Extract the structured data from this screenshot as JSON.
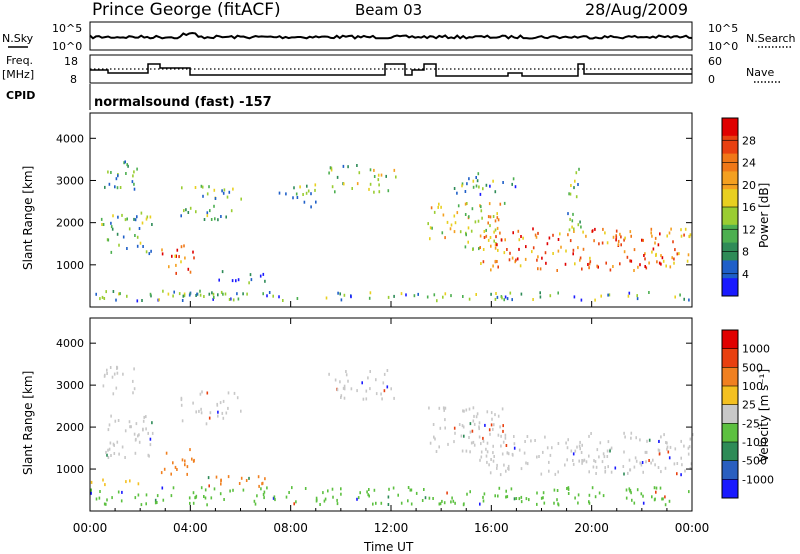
{
  "header": {
    "station": "Prince George (fitACF)",
    "beam": "Beam 03",
    "date": "28/Aug/2009"
  },
  "panels": {
    "nsky": {
      "label": "N.Sky",
      "ticks": [
        "10^5",
        "10^0"
      ]
    },
    "nsearch": {
      "label": "N.Search",
      "ticks": [
        "10^5",
        "10^0"
      ]
    },
    "freq": {
      "label_line1": "Freq.",
      "label_line2": "[MHz]",
      "ticks": [
        "18",
        "8"
      ]
    },
    "nave": {
      "label": "Nave",
      "ticks": [
        "60",
        "0"
      ]
    },
    "cpid": {
      "label": "CPID",
      "text": "normalsound (fast) -157"
    }
  },
  "chart_data": [
    {
      "type": "heatmap",
      "panel": "power",
      "xlabel": "",
      "ylabel": "Slant Range [km]",
      "colorbar_label": "Power [dB]",
      "colorbar_ticks": [
        "28",
        "24",
        "20",
        "16",
        "12",
        "8",
        "4"
      ],
      "colorbar_colors": [
        "#1a1aff",
        "#1f5fc8",
        "#2e8b57",
        "#4caf50",
        "#9acd32",
        "#e8d020",
        "#f4a020",
        "#f07818",
        "#e84010",
        "#e00000"
      ],
      "x_ticks": [
        "00:00",
        "04:00",
        "08:00",
        "12:00",
        "16:00",
        "20:00",
        "00:00"
      ],
      "y_ticks": [
        "4000",
        "3000",
        "2000",
        "1000"
      ],
      "regions": [
        {
          "t0": 0.0,
          "t1": 5.9,
          "r0": 180,
          "r1": 420,
          "level": 0.25
        },
        {
          "t0": 0.4,
          "t1": 2.5,
          "r0": 1300,
          "r1": 2300,
          "level": 0.35
        },
        {
          "t0": 0.5,
          "t1": 2.0,
          "r0": 2800,
          "r1": 3500,
          "level": 0.3
        },
        {
          "t0": 2.8,
          "t1": 4.2,
          "r0": 800,
          "r1": 1500,
          "level": 0.8
        },
        {
          "t0": 3.6,
          "t1": 6.0,
          "r0": 2100,
          "r1": 2900,
          "level": 0.35
        },
        {
          "t0": 5.0,
          "t1": 7.0,
          "r0": 600,
          "r1": 900,
          "level": 0.2
        },
        {
          "t0": 7.5,
          "t1": 9.0,
          "r0": 2400,
          "r1": 3000,
          "level": 0.35
        },
        {
          "t0": 9.5,
          "t1": 12.2,
          "r0": 2700,
          "r1": 3400,
          "level": 0.4
        },
        {
          "t0": 13.4,
          "t1": 16.5,
          "r0": 1400,
          "r1": 2500,
          "level": 0.55
        },
        {
          "t0": 15.5,
          "t1": 24.0,
          "r0": 900,
          "r1": 1900,
          "level": 0.75
        },
        {
          "t0": 0.0,
          "t1": 24.0,
          "r0": 180,
          "r1": 380,
          "level": 0.3
        },
        {
          "t0": 14.5,
          "t1": 17.0,
          "r0": 2700,
          "r1": 3200,
          "level": 0.3
        },
        {
          "t0": 19.0,
          "t1": 19.6,
          "r0": 1800,
          "r1": 3400,
          "level": 0.4
        }
      ]
    },
    {
      "type": "heatmap",
      "panel": "velocity",
      "xlabel": "Time UT",
      "ylabel": "Slant Range [km]",
      "colorbar_label": "Velocity [m s⁻¹]",
      "colorbar_ticks": [
        "1000",
        "500",
        "100",
        "25",
        "-25",
        "-100",
        "-500",
        "-1000"
      ],
      "colorbar_colors": [
        "#1a1aff",
        "#2a5fc0",
        "#2e8b57",
        "#5cc040",
        "#c8c8c8",
        "#f4c020",
        "#f08020",
        "#e84010",
        "#e00000"
      ],
      "x_ticks": [
        "00:00",
        "04:00",
        "08:00",
        "12:00",
        "16:00",
        "20:00",
        "00:00"
      ],
      "y_ticks": [
        "4000",
        "3000",
        "2000",
        "1000"
      ],
      "regions": [
        {
          "t0": 0.0,
          "t1": 24.0,
          "r0": 180,
          "r1": 600,
          "vel": "green"
        },
        {
          "t0": 0.4,
          "t1": 2.5,
          "r0": 1300,
          "r1": 2300,
          "vel": "gray"
        },
        {
          "t0": 0.5,
          "t1": 2.0,
          "r0": 2800,
          "r1": 3500,
          "vel": "gray"
        },
        {
          "t0": 2.8,
          "t1": 4.2,
          "r0": 800,
          "r1": 1500,
          "vel": "orange"
        },
        {
          "t0": 0.0,
          "t1": 2.0,
          "r0": 650,
          "r1": 850,
          "vel": "yellow"
        },
        {
          "t0": 3.6,
          "t1": 6.0,
          "r0": 2100,
          "r1": 2900,
          "vel": "gray"
        },
        {
          "t0": 4.5,
          "t1": 7.0,
          "r0": 600,
          "r1": 900,
          "vel": "orange"
        },
        {
          "t0": 9.5,
          "t1": 12.2,
          "r0": 2700,
          "r1": 3400,
          "vel": "gray"
        },
        {
          "t0": 13.4,
          "t1": 16.5,
          "r0": 1400,
          "r1": 2500,
          "vel": "gray"
        },
        {
          "t0": 15.5,
          "t1": 24.0,
          "r0": 900,
          "r1": 1900,
          "vel": "gray"
        }
      ]
    }
  ]
}
